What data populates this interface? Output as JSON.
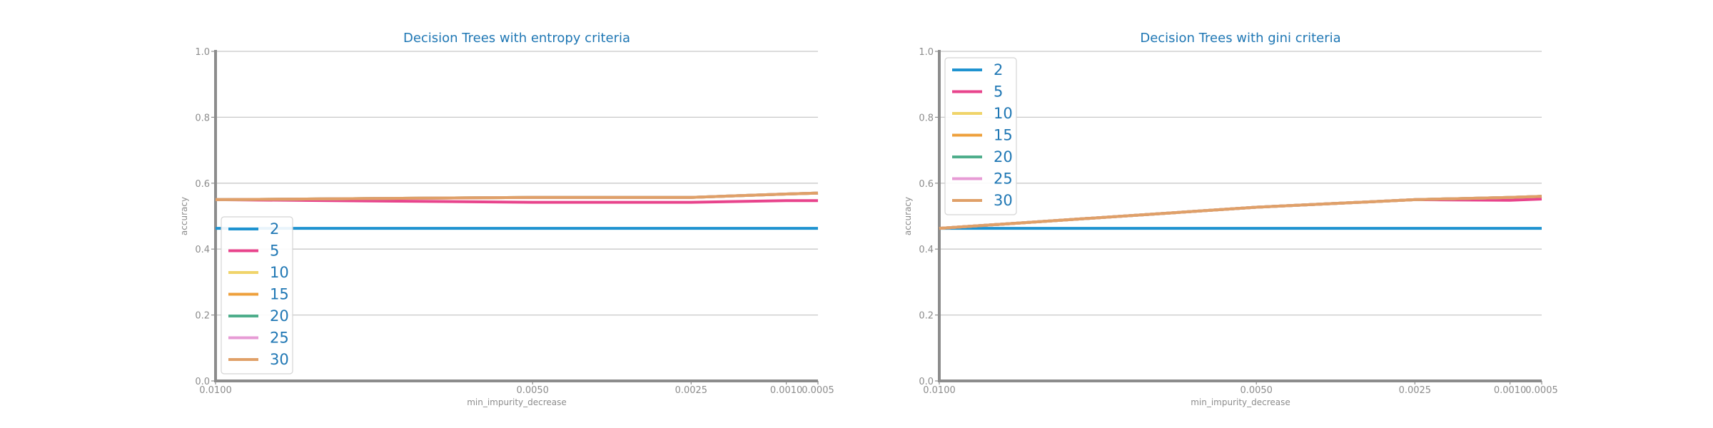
{
  "chart_data": [
    {
      "type": "line",
      "title": "Decision Trees with entropy criteria",
      "xlabel": "min_impurity_decrease",
      "ylabel": "accuracy",
      "ylim": [
        0,
        1
      ],
      "x_axis": "reversed",
      "x_ticks": [
        "0.0100",
        "0.0050",
        "0.0025",
        "0.0010",
        "0.0005"
      ],
      "y_ticks": [
        "0.0",
        "0.2",
        "0.4",
        "0.6",
        "0.8",
        "1.0"
      ],
      "grid": "horizontal",
      "legend_position": "lower-left",
      "x": [
        0.01,
        0.005,
        0.0025,
        0.001,
        0.0005
      ],
      "series": [
        {
          "name": "2",
          "color": "#1f93d0",
          "values": [
            0.463,
            0.463,
            0.463,
            0.463,
            0.463
          ]
        },
        {
          "name": "5",
          "color": "#e8448c",
          "values": [
            0.55,
            0.542,
            0.542,
            0.547,
            0.547
          ]
        },
        {
          "name": "10",
          "color": "#f0d46a",
          "values": [
            0.55,
            0.557,
            0.557,
            0.567,
            0.57
          ]
        },
        {
          "name": "15",
          "color": "#eea03c",
          "values": [
            0.55,
            0.557,
            0.557,
            0.567,
            0.57
          ]
        },
        {
          "name": "20",
          "color": "#4fae8c",
          "values": [
            0.55,
            0.557,
            0.557,
            0.567,
            0.57
          ]
        },
        {
          "name": "25",
          "color": "#e79bd5",
          "values": [
            0.55,
            0.557,
            0.557,
            0.567,
            0.57
          ]
        },
        {
          "name": "30",
          "color": "#e0a068",
          "values": [
            0.55,
            0.557,
            0.557,
            0.567,
            0.57
          ]
        }
      ]
    },
    {
      "type": "line",
      "title": "Decision Trees with gini criteria",
      "xlabel": "min_impurity_decrease",
      "ylabel": "accuracy",
      "ylim": [
        0,
        1
      ],
      "x_axis": "reversed",
      "x_ticks": [
        "0.0100",
        "0.0050",
        "0.0025",
        "0.0010",
        "0.0005"
      ],
      "y_ticks": [
        "0.0",
        "0.2",
        "0.4",
        "0.6",
        "0.8",
        "1.0"
      ],
      "grid": "horizontal",
      "legend_position": "upper-left",
      "x": [
        0.01,
        0.005,
        0.0025,
        0.001,
        0.0005
      ],
      "series": [
        {
          "name": "2",
          "color": "#1f93d0",
          "values": [
            0.463,
            0.463,
            0.463,
            0.463,
            0.463
          ]
        },
        {
          "name": "5",
          "color": "#e8448c",
          "values": [
            0.463,
            0.527,
            0.55,
            0.548,
            0.552
          ]
        },
        {
          "name": "10",
          "color": "#f0d46a",
          "values": [
            0.463,
            0.527,
            0.55,
            0.557,
            0.56
          ]
        },
        {
          "name": "15",
          "color": "#eea03c",
          "values": [
            0.463,
            0.527,
            0.55,
            0.557,
            0.56
          ]
        },
        {
          "name": "20",
          "color": "#4fae8c",
          "values": [
            0.463,
            0.527,
            0.55,
            0.557,
            0.56
          ]
        },
        {
          "name": "25",
          "color": "#e79bd5",
          "values": [
            0.463,
            0.527,
            0.55,
            0.557,
            0.56
          ]
        },
        {
          "name": "30",
          "color": "#e0a068",
          "values": [
            0.463,
            0.527,
            0.55,
            0.557,
            0.56
          ]
        }
      ]
    }
  ]
}
